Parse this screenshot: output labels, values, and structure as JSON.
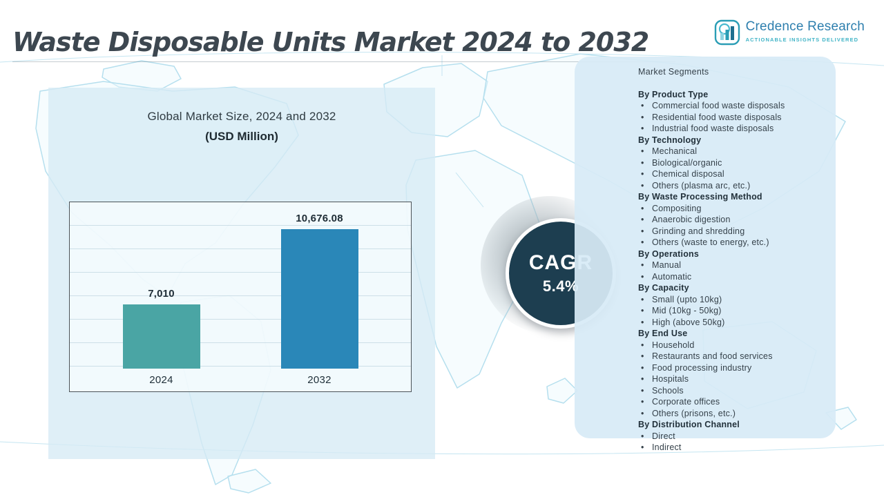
{
  "title": "Waste Disposable Units  Market 2024 to 2032",
  "logo": {
    "name": "Credence Research",
    "tagline": "ACTIONABLE INSIGHTS DELIVERED"
  },
  "chart_data": {
    "type": "bar",
    "title": "Global Market Size, 2024 and 2032",
    "subtitle": "(USD Million)",
    "categories": [
      "2024",
      "2032"
    ],
    "values": [
      7010,
      10676.08
    ],
    "value_labels": [
      "7,010",
      "10,676.08"
    ],
    "bar_colors": [
      "#4aa5a4",
      "#2a87b8"
    ],
    "ylim": [
      3900,
      12000
    ],
    "grid": true,
    "legend": "none"
  },
  "cagr": {
    "label": "CAGR",
    "value": "5.4%"
  },
  "segments": {
    "title": "Market Segments",
    "groups": [
      {
        "heading": "By Product Type",
        "items": [
          "Commercial food waste disposals",
          "Residential food waste disposals",
          "Industrial food waste disposals"
        ]
      },
      {
        "heading": "By Technology",
        "items": [
          "Mechanical",
          "Biological/organic",
          "Chemical disposal",
          "Others (plasma arc, etc.)"
        ]
      },
      {
        "heading": "By Waste Processing Method",
        "items": [
          "Compositing",
          "Anaerobic digestion",
          "Grinding and shredding",
          "Others (waste to energy, etc.)"
        ]
      },
      {
        "heading": "By Operations",
        "items": [
          "Manual",
          "Automatic"
        ]
      },
      {
        "heading": "By Capacity",
        "items": [
          "Small (upto 10kg)",
          "Mid (10kg - 50kg)",
          "High (above 50kg)"
        ]
      },
      {
        "heading": "By End Use",
        "items": [
          "Household",
          "Restaurants and food services",
          "Food processing industry",
          "Hospitals",
          "Schools",
          "Corporate offices",
          "Others (prisons, etc.)"
        ]
      },
      {
        "heading": "By Distribution Channel",
        "items": [
          "Direct",
          "Indirect"
        ]
      }
    ]
  },
  "colors": {
    "teal_bar": "#4aa5a4",
    "blue_bar": "#2a87b8",
    "cagr_navy": "#1d3e50",
    "panel_blue": "#d7ebf6",
    "map_line": "#b5dfee",
    "brand_blue": "#2e7fae",
    "brand_teal": "#3fb3c6"
  }
}
